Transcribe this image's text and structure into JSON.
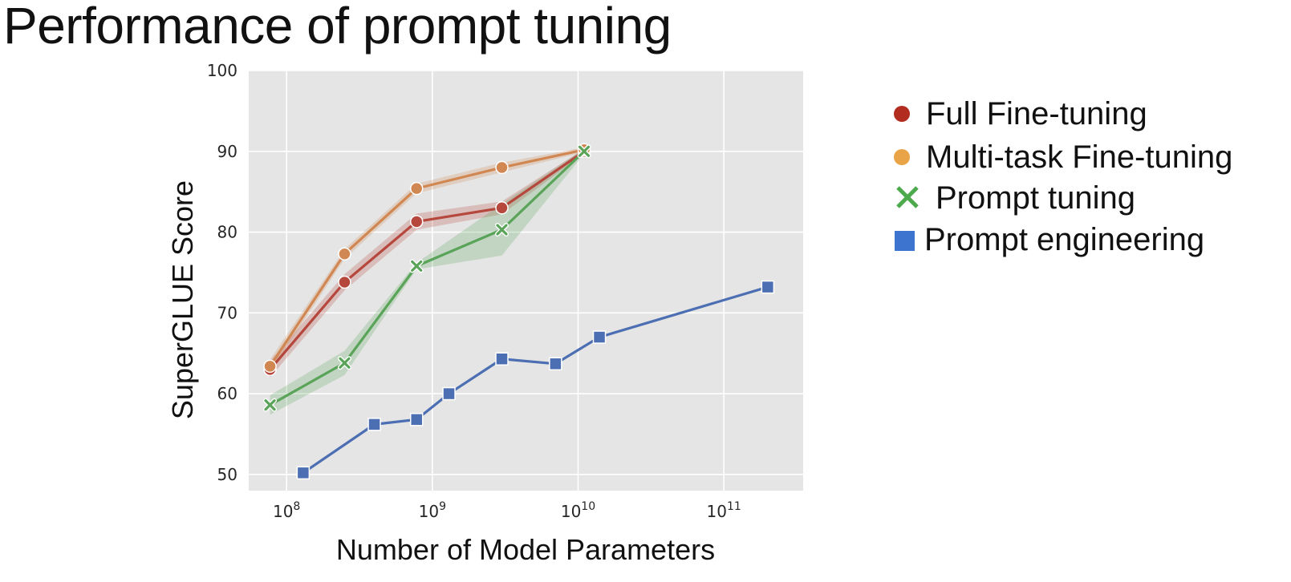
{
  "page": {
    "title": "Performance of prompt tuning"
  },
  "chart_data": {
    "type": "line",
    "title": "Performance of prompt tuning",
    "xlabel": "Number of Model Parameters",
    "ylabel": "SuperGLUE Score",
    "xscale": "log",
    "xlim": [
      55000000,
      350000000000
    ],
    "ylim": [
      48,
      100
    ],
    "yticks": [
      50,
      60,
      70,
      80,
      90,
      100
    ],
    "xticks": [
      {
        "value": 100000000,
        "base": "10",
        "exp": "8"
      },
      {
        "value": 1000000000,
        "base": "10",
        "exp": "9"
      },
      {
        "value": 10000000000,
        "base": "10",
        "exp": "10"
      },
      {
        "value": 100000000000,
        "base": "10",
        "exp": "11"
      }
    ],
    "grid": true,
    "legend_position": "right",
    "series": [
      {
        "name": "Full Fine-tuning",
        "color": "#b5473d",
        "marker": "circle",
        "legend_marker": "circle",
        "legend_color": "#b22d1f",
        "x": [
          77000000,
          250000000,
          780000000,
          3000000000,
          11000000000
        ],
        "y": [
          63.0,
          73.8,
          81.3,
          83.0,
          90.0
        ],
        "band": [
          1.0,
          1.0,
          1.0,
          0.8,
          0.3
        ]
      },
      {
        "name": "Multi-task Fine-tuning",
        "color": "#d18752",
        "marker": "circle",
        "legend_marker": "circle",
        "legend_color": "#e8a446",
        "x": [
          77000000,
          250000000,
          780000000,
          3000000000,
          11000000000
        ],
        "y": [
          63.4,
          77.3,
          85.4,
          88.0,
          90.2
        ],
        "band": [
          0.8,
          0.6,
          0.6,
          0.6,
          0.3
        ]
      },
      {
        "name": "Prompt tuning",
        "color": "#5aa45a",
        "marker": "x",
        "legend_marker": "x",
        "legend_color": "#4caa4c",
        "x": [
          77000000,
          250000000,
          780000000,
          3000000000,
          11000000000
        ],
        "y": [
          58.6,
          63.8,
          75.8,
          80.3,
          90.0
        ],
        "band": [
          1.2,
          1.5,
          0.4,
          3.2,
          0.3
        ]
      },
      {
        "name": "Prompt engineering",
        "color": "#4c6eb2",
        "marker": "square",
        "legend_marker": "square",
        "legend_color": "#3d74cf",
        "x": [
          130000000,
          400000000,
          780000000,
          1300000000,
          3000000000,
          7000000000,
          14000000000,
          200000000000
        ],
        "y": [
          50.2,
          56.2,
          56.8,
          60.0,
          64.3,
          63.7,
          67.0,
          73.2
        ],
        "band": null
      }
    ]
  }
}
